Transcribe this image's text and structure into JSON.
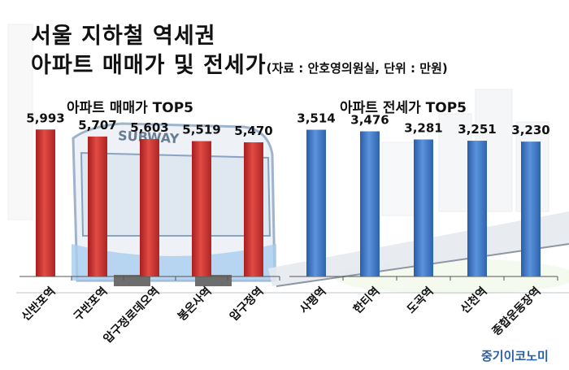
{
  "title": {
    "line1": "서울 지하철 역세권",
    "line2": "아파트 매매가 및 전세가",
    "source": "(자료 : 안호영의원실, 단위 : 만원)"
  },
  "brand": "중기이코노미",
  "train_sign": "SUBWAY",
  "colors": {
    "sale": "#c8302e",
    "jeonse": "#3a73c2"
  },
  "chart_data": [
    {
      "type": "bar",
      "title": "아파트 매매가 TOP5",
      "categories": [
        "신반포역",
        "구반포역",
        "압구정로데오역",
        "봉은사역",
        "압구정역"
      ],
      "values": [
        5993,
        5707,
        5603,
        5519,
        5470
      ],
      "value_labels": [
        "5,993",
        "5,707",
        "5,603",
        "5,519",
        "5,470"
      ],
      "ylim": [
        0,
        6300
      ]
    },
    {
      "type": "bar",
      "title": "아파트 전세가 TOP5",
      "categories": [
        "사평역",
        "한티역",
        "도곡역",
        "신천역",
        "종합운동장역"
      ],
      "values": [
        3514,
        3476,
        3281,
        3251,
        3230
      ],
      "value_labels": [
        "3,514",
        "3,476",
        "3,281",
        "3,251",
        "3,230"
      ],
      "ylim": [
        0,
        3700
      ]
    }
  ]
}
